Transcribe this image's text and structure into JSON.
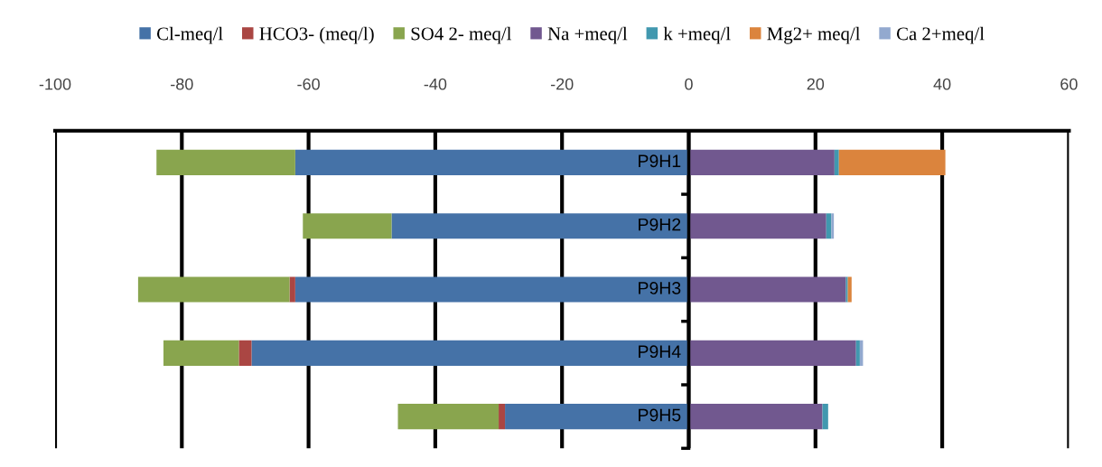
{
  "chart_data": {
    "type": "bar",
    "orientation": "horizontal",
    "stacked": true,
    "categories": [
      "P9H1",
      "P9H2",
      "P9H3",
      "P9H4",
      "P9H5"
    ],
    "series": [
      {
        "name": "Cl-meq/l",
        "color": "#4572a7",
        "values": [
          -62.1,
          -46.9,
          -62.1,
          -69.0,
          -29.0
        ]
      },
      {
        "name": "HCO3- (meq/l)",
        "color": "#aa4643",
        "values": [
          0,
          0,
          -0.9,
          -2.0,
          -1.0
        ]
      },
      {
        "name": "SO4 2- meq/l",
        "color": "#89a54e",
        "values": [
          -21.9,
          -14.0,
          -23.9,
          -11.9,
          -15.9
        ]
      },
      {
        "name": "Na +meq/l",
        "color": "#71588f",
        "values": [
          23.0,
          21.7,
          24.8,
          26.4,
          21.1
        ]
      },
      {
        "name": "k +meq/l",
        "color": "#4198af",
        "values": [
          0.7,
          0.8,
          0.3,
          0.6,
          0.9
        ]
      },
      {
        "name": "Mg2+ meq/l",
        "color": "#db843d",
        "values": [
          16.8,
          0,
          0.6,
          0,
          0
        ]
      },
      {
        "name": "Ca 2+meq/l",
        "color": "#93a9cf",
        "values": [
          0,
          0.4,
          0,
          0.5,
          0
        ]
      }
    ],
    "xlim": [
      -100,
      60
    ],
    "xticks": [
      -100,
      -80,
      -60,
      -40,
      -20,
      0,
      20,
      40,
      60
    ],
    "grid": "x",
    "legend": "top"
  }
}
